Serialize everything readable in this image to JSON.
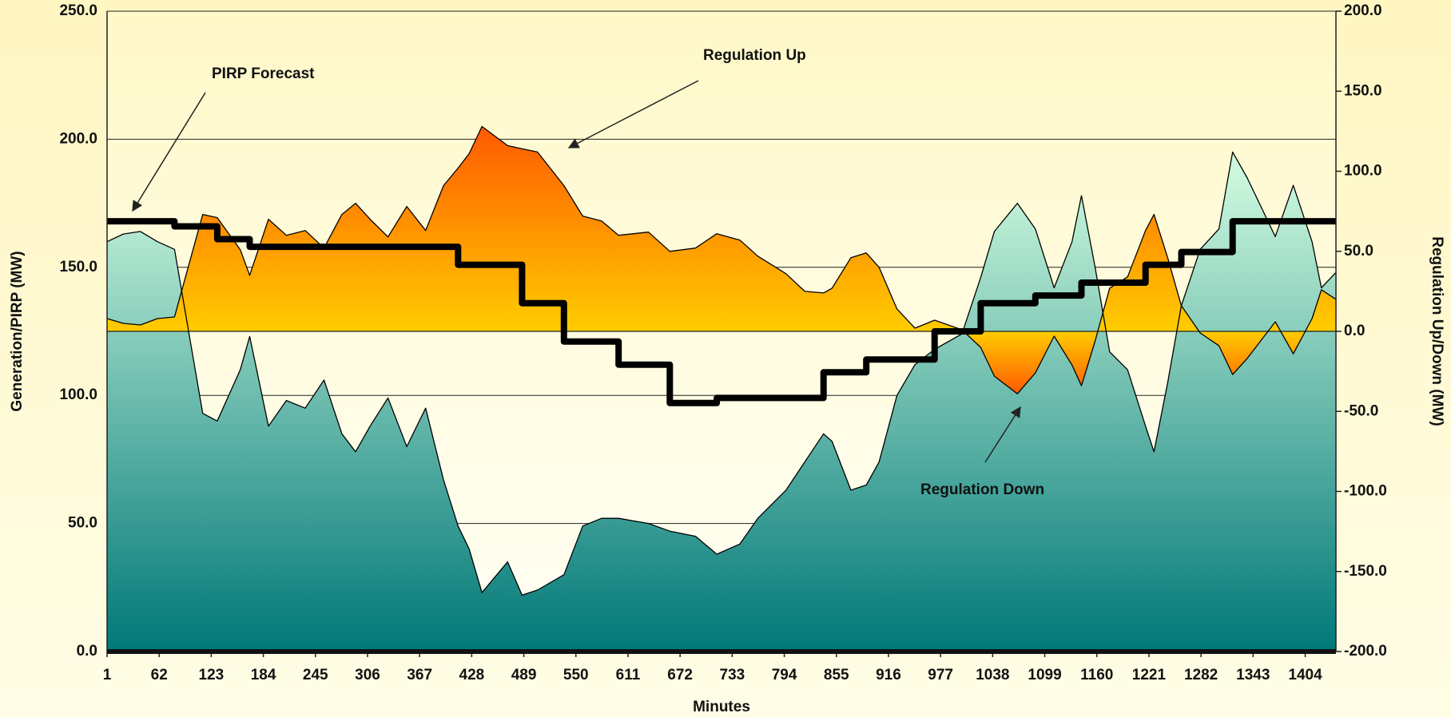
{
  "chart_data": {
    "type": "line",
    "xlabel": "Minutes",
    "ylabel": "Generation/PIRP (MW)",
    "y2label": "Regulation Up/Down (MW)",
    "annotations": [
      "PIRP Forecast",
      "Regulation Up",
      "Regulation Down"
    ],
    "xlim": [
      1,
      1440
    ],
    "xticks": [
      1,
      62,
      123,
      184,
      245,
      306,
      367,
      428,
      489,
      550,
      611,
      672,
      733,
      794,
      855,
      916,
      977,
      1038,
      1099,
      1160,
      1221,
      1282,
      1343,
      1404
    ],
    "ylim": [
      0,
      250
    ],
    "yticks": [
      {
        "value": 0,
        "label": "0.0"
      },
      {
        "value": 50,
        "label": "50.0"
      },
      {
        "value": 100,
        "label": "100.0"
      },
      {
        "value": 150,
        "label": "150.0"
      },
      {
        "value": 200,
        "label": "200.0"
      },
      {
        "value": 250,
        "label": "250.0"
      }
    ],
    "y2lim": [
      -200,
      200
    ],
    "y2ticks": [
      {
        "value": -200,
        "label": "-200.0"
      },
      {
        "value": -150,
        "label": "-150.0"
      },
      {
        "value": -100,
        "label": "-100.0"
      },
      {
        "value": -50,
        "label": "-50.0"
      },
      {
        "value": 0,
        "label": "0.0"
      },
      {
        "value": 50,
        "label": "50.0"
      },
      {
        "value": 100,
        "label": "100.0"
      },
      {
        "value": 150,
        "label": "150.0"
      },
      {
        "value": 200,
        "label": "200.0"
      }
    ],
    "grid": true,
    "x": [
      1,
      20,
      40,
      60,
      80,
      97,
      113,
      130,
      157,
      168,
      190,
      211,
      233,
      255,
      276,
      292,
      309,
      330,
      352,
      374,
      395,
      412,
      425,
      440,
      470,
      487,
      505,
      536,
      558,
      580,
      600,
      635,
      660,
      690,
      715,
      742,
      763,
      796,
      818,
      840,
      850,
      872,
      890,
      905,
      926,
      947,
      970,
      1002,
      1024,
      1040,
      1067,
      1088,
      1110,
      1131,
      1142,
      1158,
      1175,
      1196,
      1217,
      1227,
      1243,
      1259,
      1281,
      1303,
      1319,
      1336,
      1369,
      1390,
      1412,
      1423,
      1440
    ],
    "series": [
      {
        "fill": true,
        "color": "#000000",
        "gradient": [
          "#cdf8dd",
          "#007878"
        ],
        "values": [
          160,
          163,
          164,
          160,
          157,
          124,
          93,
          90,
          110,
          123,
          88,
          98,
          95,
          106,
          85,
          78,
          88,
          99,
          80,
          95,
          67,
          49,
          40,
          23,
          35,
          22,
          24,
          30,
          49,
          52,
          52,
          50,
          47,
          45,
          38,
          42,
          52,
          63,
          74,
          85,
          82,
          63,
          65,
          74,
          100,
          112,
          118,
          124,
          146,
          164,
          175,
          165,
          142,
          160,
          178,
          150,
          117,
          110,
          88,
          78,
          105,
          135,
          157,
          165,
          195,
          185,
          162,
          182,
          160,
          142,
          148
        ]
      },
      {
        "fill": true,
        "axis": "y2",
        "color": "#000000",
        "gradient": [
          "#ff5a00",
          "#ffcc00"
        ],
        "values": [
          8,
          5,
          4,
          8,
          9,
          42,
          73,
          71,
          51,
          35,
          70,
          60,
          63,
          52,
          73,
          80,
          70,
          59,
          78,
          63,
          91,
          102,
          111,
          128,
          116,
          114,
          112,
          91,
          72,
          69,
          60,
          62,
          50,
          52,
          61,
          57,
          47,
          36,
          25,
          24,
          27,
          46,
          49,
          40,
          14,
          2,
          7,
          1,
          -10,
          -28,
          -39,
          -26,
          -3,
          -21,
          -34,
          -6,
          27,
          34,
          63,
          73,
          46,
          16,
          -1,
          -9,
          -27,
          -17,
          6,
          -14,
          8,
          26,
          20
        ]
      },
      {
        "fill": false,
        "step": true,
        "color": "#000000",
        "values": [
          168,
          168,
          168,
          168,
          166,
          166,
          166,
          161,
          161,
          158,
          158,
          158,
          158,
          158,
          158,
          158,
          158,
          158,
          158,
          158,
          158,
          151,
          151,
          151,
          151,
          136,
          136,
          121,
          121,
          121,
          112,
          112,
          97,
          97,
          99,
          99,
          99,
          99,
          99,
          109,
          109,
          109,
          114,
          114,
          114,
          114,
          125,
          125,
          136,
          136,
          136,
          139,
          139,
          139,
          144,
          144,
          144,
          144,
          151,
          151,
          151,
          156,
          156,
          156,
          168,
          168,
          168,
          168,
          168,
          168,
          168
        ]
      }
    ]
  }
}
